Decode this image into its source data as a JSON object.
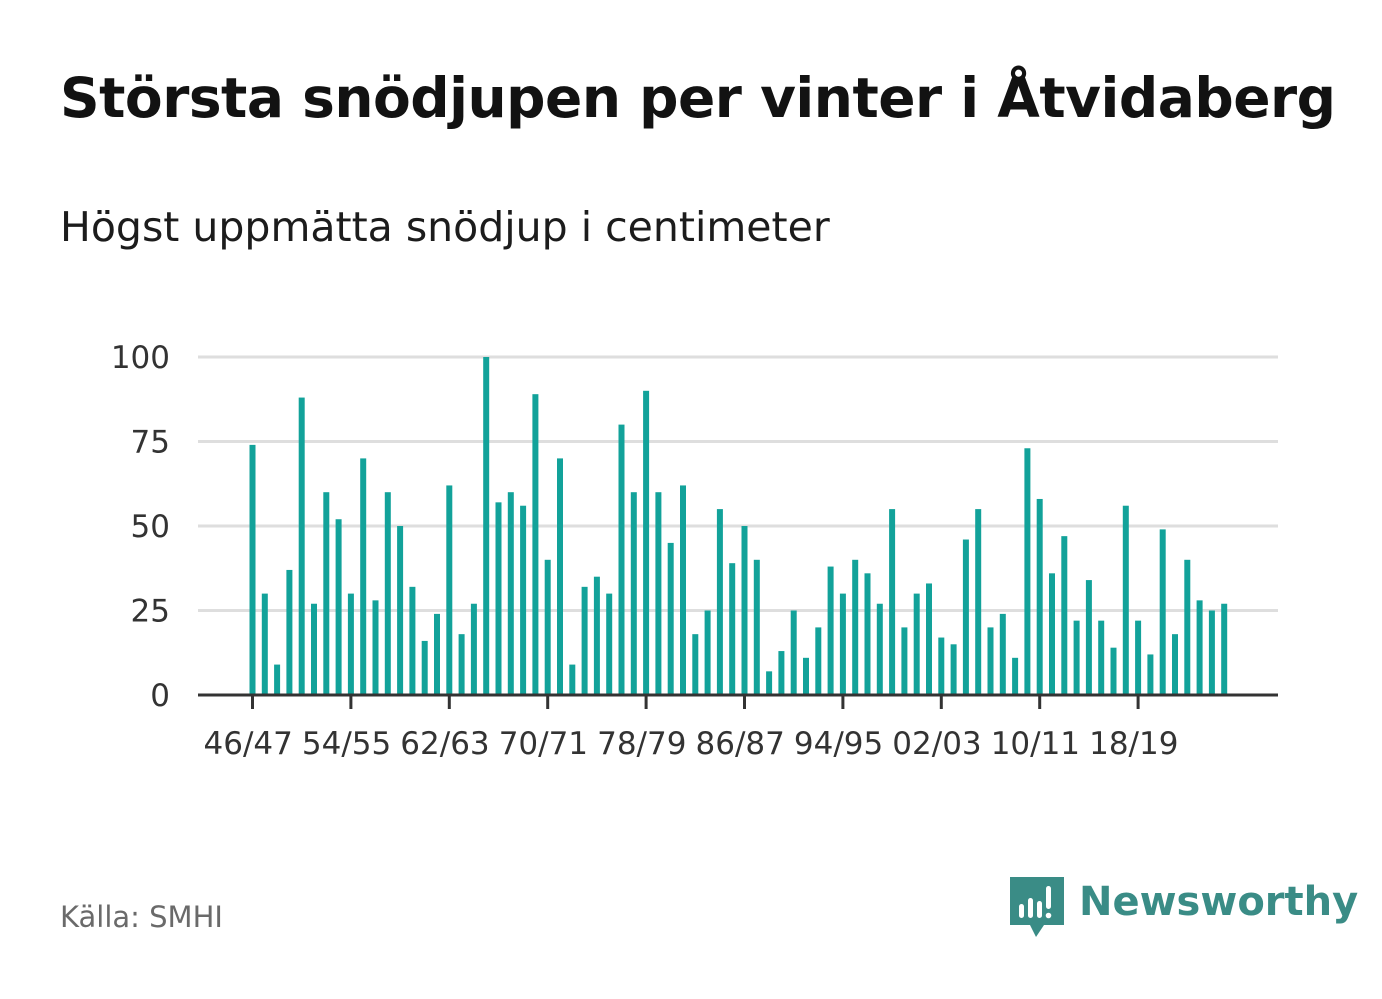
{
  "title": "Största snödjupen per vinter i Åtvidaberg",
  "subtitle": "Högst uppmätta snödjup i centimeter",
  "source": "Källa: SMHI",
  "brand": {
    "name": "Newsworthy",
    "icon": "newsworthy-logo-icon",
    "color": "#3a8c86"
  },
  "colors": {
    "bar": "#12a29a",
    "grid": "#dedede",
    "axis": "#333333",
    "tick_label": "#333333"
  },
  "chart_data": {
    "type": "bar",
    "title": "Största snödjupen per vinter i Åtvidaberg",
    "subtitle": "Högst uppmätta snödjup i centimeter",
    "xlabel": "",
    "ylabel": "",
    "ylim": [
      0,
      100
    ],
    "yticks": [
      0,
      25,
      50,
      75,
      100
    ],
    "grid": true,
    "legend": "none",
    "first_season": "46/47",
    "tick_labels": [
      "46/47",
      "54/55",
      "62/63",
      "70/71",
      "78/79",
      "86/87",
      "94/95",
      "02/03",
      "10/11",
      "18/19"
    ],
    "values": [
      74,
      30,
      9,
      37,
      88,
      27,
      60,
      52,
      30,
      70,
      28,
      60,
      50,
      32,
      16,
      24,
      62,
      18,
      27,
      100,
      57,
      60,
      56,
      89,
      40,
      70,
      9,
      32,
      35,
      30,
      80,
      60,
      90,
      60,
      45,
      62,
      18,
      25,
      55,
      39,
      50,
      40,
      7,
      13,
      25,
      11,
      20,
      38,
      30,
      40,
      36,
      27,
      55,
      20,
      30,
      33,
      17,
      15,
      46,
      55,
      20,
      24,
      11,
      73,
      58,
      36,
      47,
      22,
      34,
      22,
      14,
      56,
      22,
      12,
      49,
      18,
      40,
      28,
      25,
      27
    ]
  }
}
